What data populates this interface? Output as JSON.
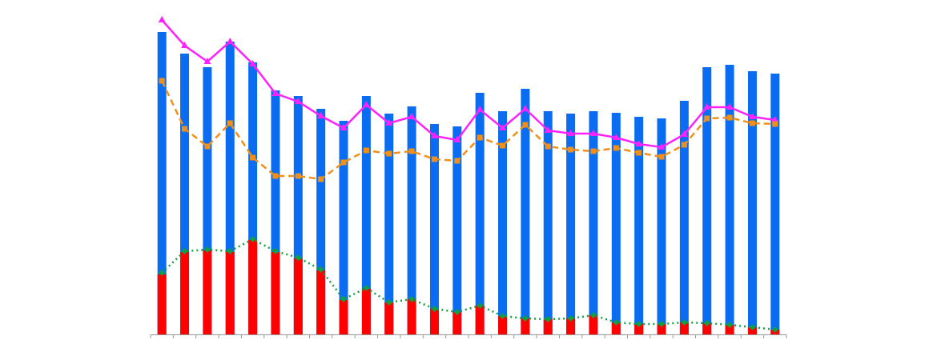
{
  "chart_data": {
    "type": "bar-line",
    "categories": [
      null,
      null,
      null,
      null,
      null,
      null,
      null,
      null,
      null,
      null,
      null,
      null,
      null,
      null,
      null,
      null,
      null,
      null,
      null,
      null,
      null,
      null,
      null,
      null,
      null,
      null,
      null,
      null
    ],
    "ylim": [
      0,
      400
    ],
    "series": [
      {
        "kind": "bar",
        "color": "#0a6cf0",
        "values": [
          378,
          351,
          334,
          366,
          340,
          305,
          298,
          282,
          267,
          298,
          276,
          285,
          263,
          260,
          302,
          279,
          307,
          279,
          276,
          279,
          277,
          272,
          270,
          292,
          334,
          337,
          329,
          326
        ]
      },
      {
        "kind": "bar",
        "color": "#ff0000",
        "values": [
          75,
          103,
          105,
          103,
          118,
          103,
          95,
          80,
          43,
          57,
          40,
          44,
          32,
          28,
          36,
          23,
          20,
          19,
          20,
          24,
          15,
          13,
          13,
          15,
          14,
          12,
          9,
          6
        ]
      },
      {
        "kind": "line",
        "color": "#ff22ff",
        "dash": "none",
        "marker": "triangle",
        "values": [
          393,
          361,
          341,
          366,
          338,
          301,
          291,
          273,
          258,
          287,
          264,
          272,
          248,
          243,
          281,
          258,
          282,
          255,
          251,
          251,
          246,
          238,
          234,
          250,
          284,
          284,
          272,
          268
        ]
      },
      {
        "kind": "line",
        "color": "#f0901a",
        "dash": "8,5",
        "marker": "square",
        "values": [
          317,
          257,
          235,
          264,
          221,
          198,
          198,
          194,
          215,
          230,
          226,
          229,
          219,
          217,
          246,
          236,
          262,
          235,
          231,
          229,
          233,
          227,
          222,
          237,
          270,
          271,
          264,
          263
        ]
      },
      {
        "kind": "line",
        "color": "#10a040",
        "dash": "2,4",
        "marker": "diamond",
        "values": [
          77,
          104,
          106,
          104,
          119,
          104,
          96,
          81,
          44,
          58,
          40,
          44,
          32,
          28,
          36,
          23,
          20,
          19,
          20,
          24,
          15,
          13,
          13,
          15,
          14,
          12,
          9,
          6
        ]
      }
    ]
  }
}
